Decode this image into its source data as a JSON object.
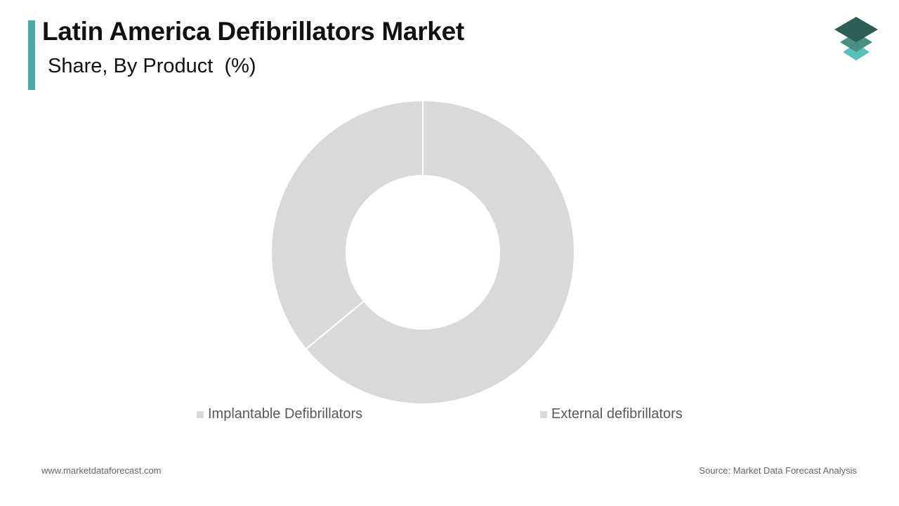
{
  "header": {
    "title": "Latin America Defibrillators Market",
    "subtitle": "Share, By Product  (%)",
    "accent_color": "#4aa9a6"
  },
  "logo": {
    "icon": "stacked-layers-icon",
    "colors": [
      "#2e5e55",
      "#4a8f86",
      "#55c1bd"
    ]
  },
  "chart_data": {
    "type": "pie",
    "style": "donut",
    "categories": [
      "Implantable Defibrillators",
      "External defibrillators"
    ],
    "values": [
      64,
      36
    ],
    "colors": [
      "#d9d9d9",
      "#d9d9d9"
    ],
    "legend_position": "bottom"
  },
  "footer": {
    "website": "www.marketdataforecast.com",
    "source": "Source: Market Data Forecast Analysis"
  }
}
